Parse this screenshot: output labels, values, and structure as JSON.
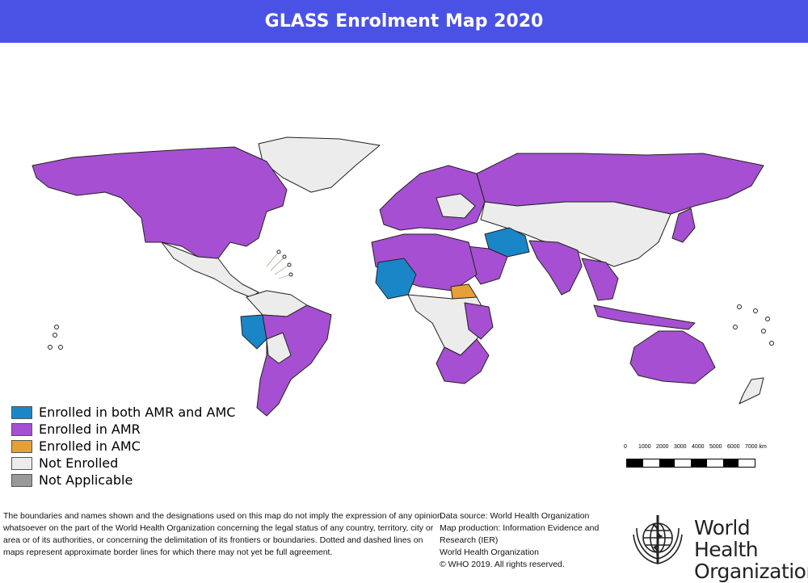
{
  "header": {
    "title": "GLASS Enrolment Map 2020"
  },
  "colors": {
    "header_bg": "#4a52e6",
    "both": "#1a86c8",
    "amr": "#a64fd2",
    "amc": "#e6a03a",
    "not_enrolled": "#ececec",
    "not_applicable": "#9a9a9a"
  },
  "legend": [
    {
      "label": "Enrolled in both AMR and AMC",
      "color": "#1a86c8"
    },
    {
      "label": "Enrolled in AMR",
      "color": "#a64fd2"
    },
    {
      "label": "Enrolled in AMC",
      "color": "#e6a03a"
    },
    {
      "label": "Not Enrolled",
      "color": "#ececec"
    },
    {
      "label": "Not Applicable",
      "color": "#9a9a9a"
    }
  ],
  "scale": {
    "labels": [
      "0",
      "1000",
      "2000",
      "3000",
      "4000",
      "5000",
      "6000",
      "7000 km"
    ]
  },
  "disclaimer": "The boundaries and names shown and the designations used on this map do not imply the expression of any opinion whatsoever on the part of the World Health Organization concerning the legal status of any country, territory, city or area or of its authorities, or concerning the delimitation of its frontiers or boundaries. Dotted and dashed lines on maps represent approximate border lines for which there may not yet be full agreement.",
  "credits": {
    "data_source": "Data source: World Health Organization",
    "map_production": "Map production: Information Evidence and Research (IER)",
    "org": "World Health Organization",
    "copyright": "© WHO 2019. All rights reserved."
  },
  "logo": {
    "line1": "World Health",
    "line2": "Organization"
  }
}
